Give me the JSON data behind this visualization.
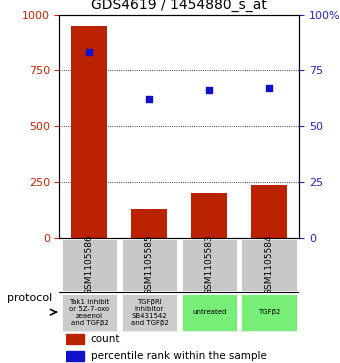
{
  "title": "GDS4619 / 1454880_s_at",
  "samples": [
    "GSM1105586",
    "GSM1105585",
    "GSM1105583",
    "GSM1105584"
  ],
  "counts": [
    950,
    130,
    200,
    235
  ],
  "percentiles": [
    83,
    62,
    66,
    67
  ],
  "protocols": [
    "Tak1 inhibit\nor 5Z-7-oxo\nzeaenol\nand TGFβ2",
    "TGFβRI\ninhibitor\nSB431542\nand TGFβ2",
    "untreated",
    "TGFβ2"
  ],
  "protocol_colors": [
    "#cccccc",
    "#cccccc",
    "#77ee77",
    "#77ee77"
  ],
  "gsm_box_color": "#c8c8c8",
  "bar_color": "#bb2200",
  "dot_color": "#1111cc",
  "ylim_left": [
    0,
    1000
  ],
  "ylim_right": [
    0,
    100
  ],
  "yticks_left": [
    0,
    250,
    500,
    750,
    1000
  ],
  "yticks_right": [
    0,
    25,
    50,
    75,
    100
  ],
  "left_tick_color": "#cc2200",
  "right_tick_color": "#2222cc",
  "figsize": [
    3.4,
    3.63
  ],
  "dpi": 100
}
